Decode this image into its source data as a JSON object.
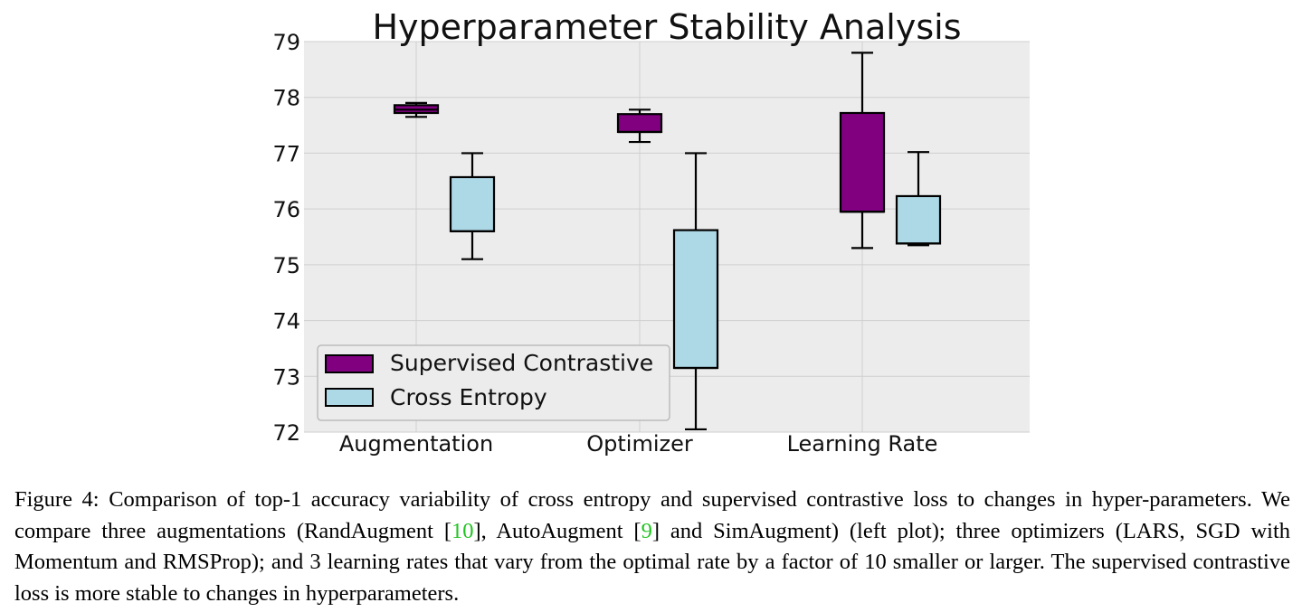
{
  "chart_data": {
    "type": "box",
    "title": "Hyperparameter Stability Analysis",
    "xlabel": "",
    "ylabel": "",
    "ylim": [
      72,
      79
    ],
    "yticks": [
      72,
      73,
      74,
      75,
      76,
      77,
      78,
      79
    ],
    "categories": [
      "Augmentation",
      "Optimizer",
      "Learning Rate"
    ],
    "grid": true,
    "legend_position": "lower-left",
    "series": [
      {
        "name": "Supervised Contrastive",
        "color": "#800080",
        "boxes": [
          {
            "whisker_low": 77.65,
            "q1": 77.72,
            "median": 77.78,
            "q3": 77.86,
            "whisker_high": 77.9
          },
          {
            "whisker_low": 77.2,
            "q1": 77.38,
            "median": 77.38,
            "q3": 77.7,
            "whisker_high": 77.78
          },
          {
            "whisker_low": 75.3,
            "q1": 75.95,
            "median": 75.95,
            "q3": 77.72,
            "whisker_high": 78.8
          }
        ]
      },
      {
        "name": "Cross Entropy",
        "color": "#add8e6",
        "boxes": [
          {
            "whisker_low": 75.1,
            "q1": 75.6,
            "median": 75.6,
            "q3": 76.57,
            "whisker_high": 77.0
          },
          {
            "whisker_low": 72.05,
            "q1": 73.15,
            "median": 73.15,
            "q3": 75.62,
            "whisker_high": 77.0
          },
          {
            "whisker_low": 75.35,
            "q1": 75.38,
            "median": 75.38,
            "q3": 76.23,
            "whisker_high": 77.02
          }
        ]
      }
    ]
  },
  "caption": {
    "figure_label": "Figure 4:",
    "text_1": "Comparison of top-1 accuracy variability of cross entropy and supervised contrastive loss to changes in hyper-parameters. We compare three augmentations (RandAugment [",
    "cite_1": "10",
    "text_2": "], AutoAugment [",
    "cite_2": "9",
    "text_3": "] and SimAugment) (left plot); three optimizers (LARS, SGD with Momentum and RMSProp); and 3 learning rates that vary from the optimal rate by a factor of 10 smaller or larger. The supervised contrastive loss is more stable to changes in hyperparameters."
  }
}
